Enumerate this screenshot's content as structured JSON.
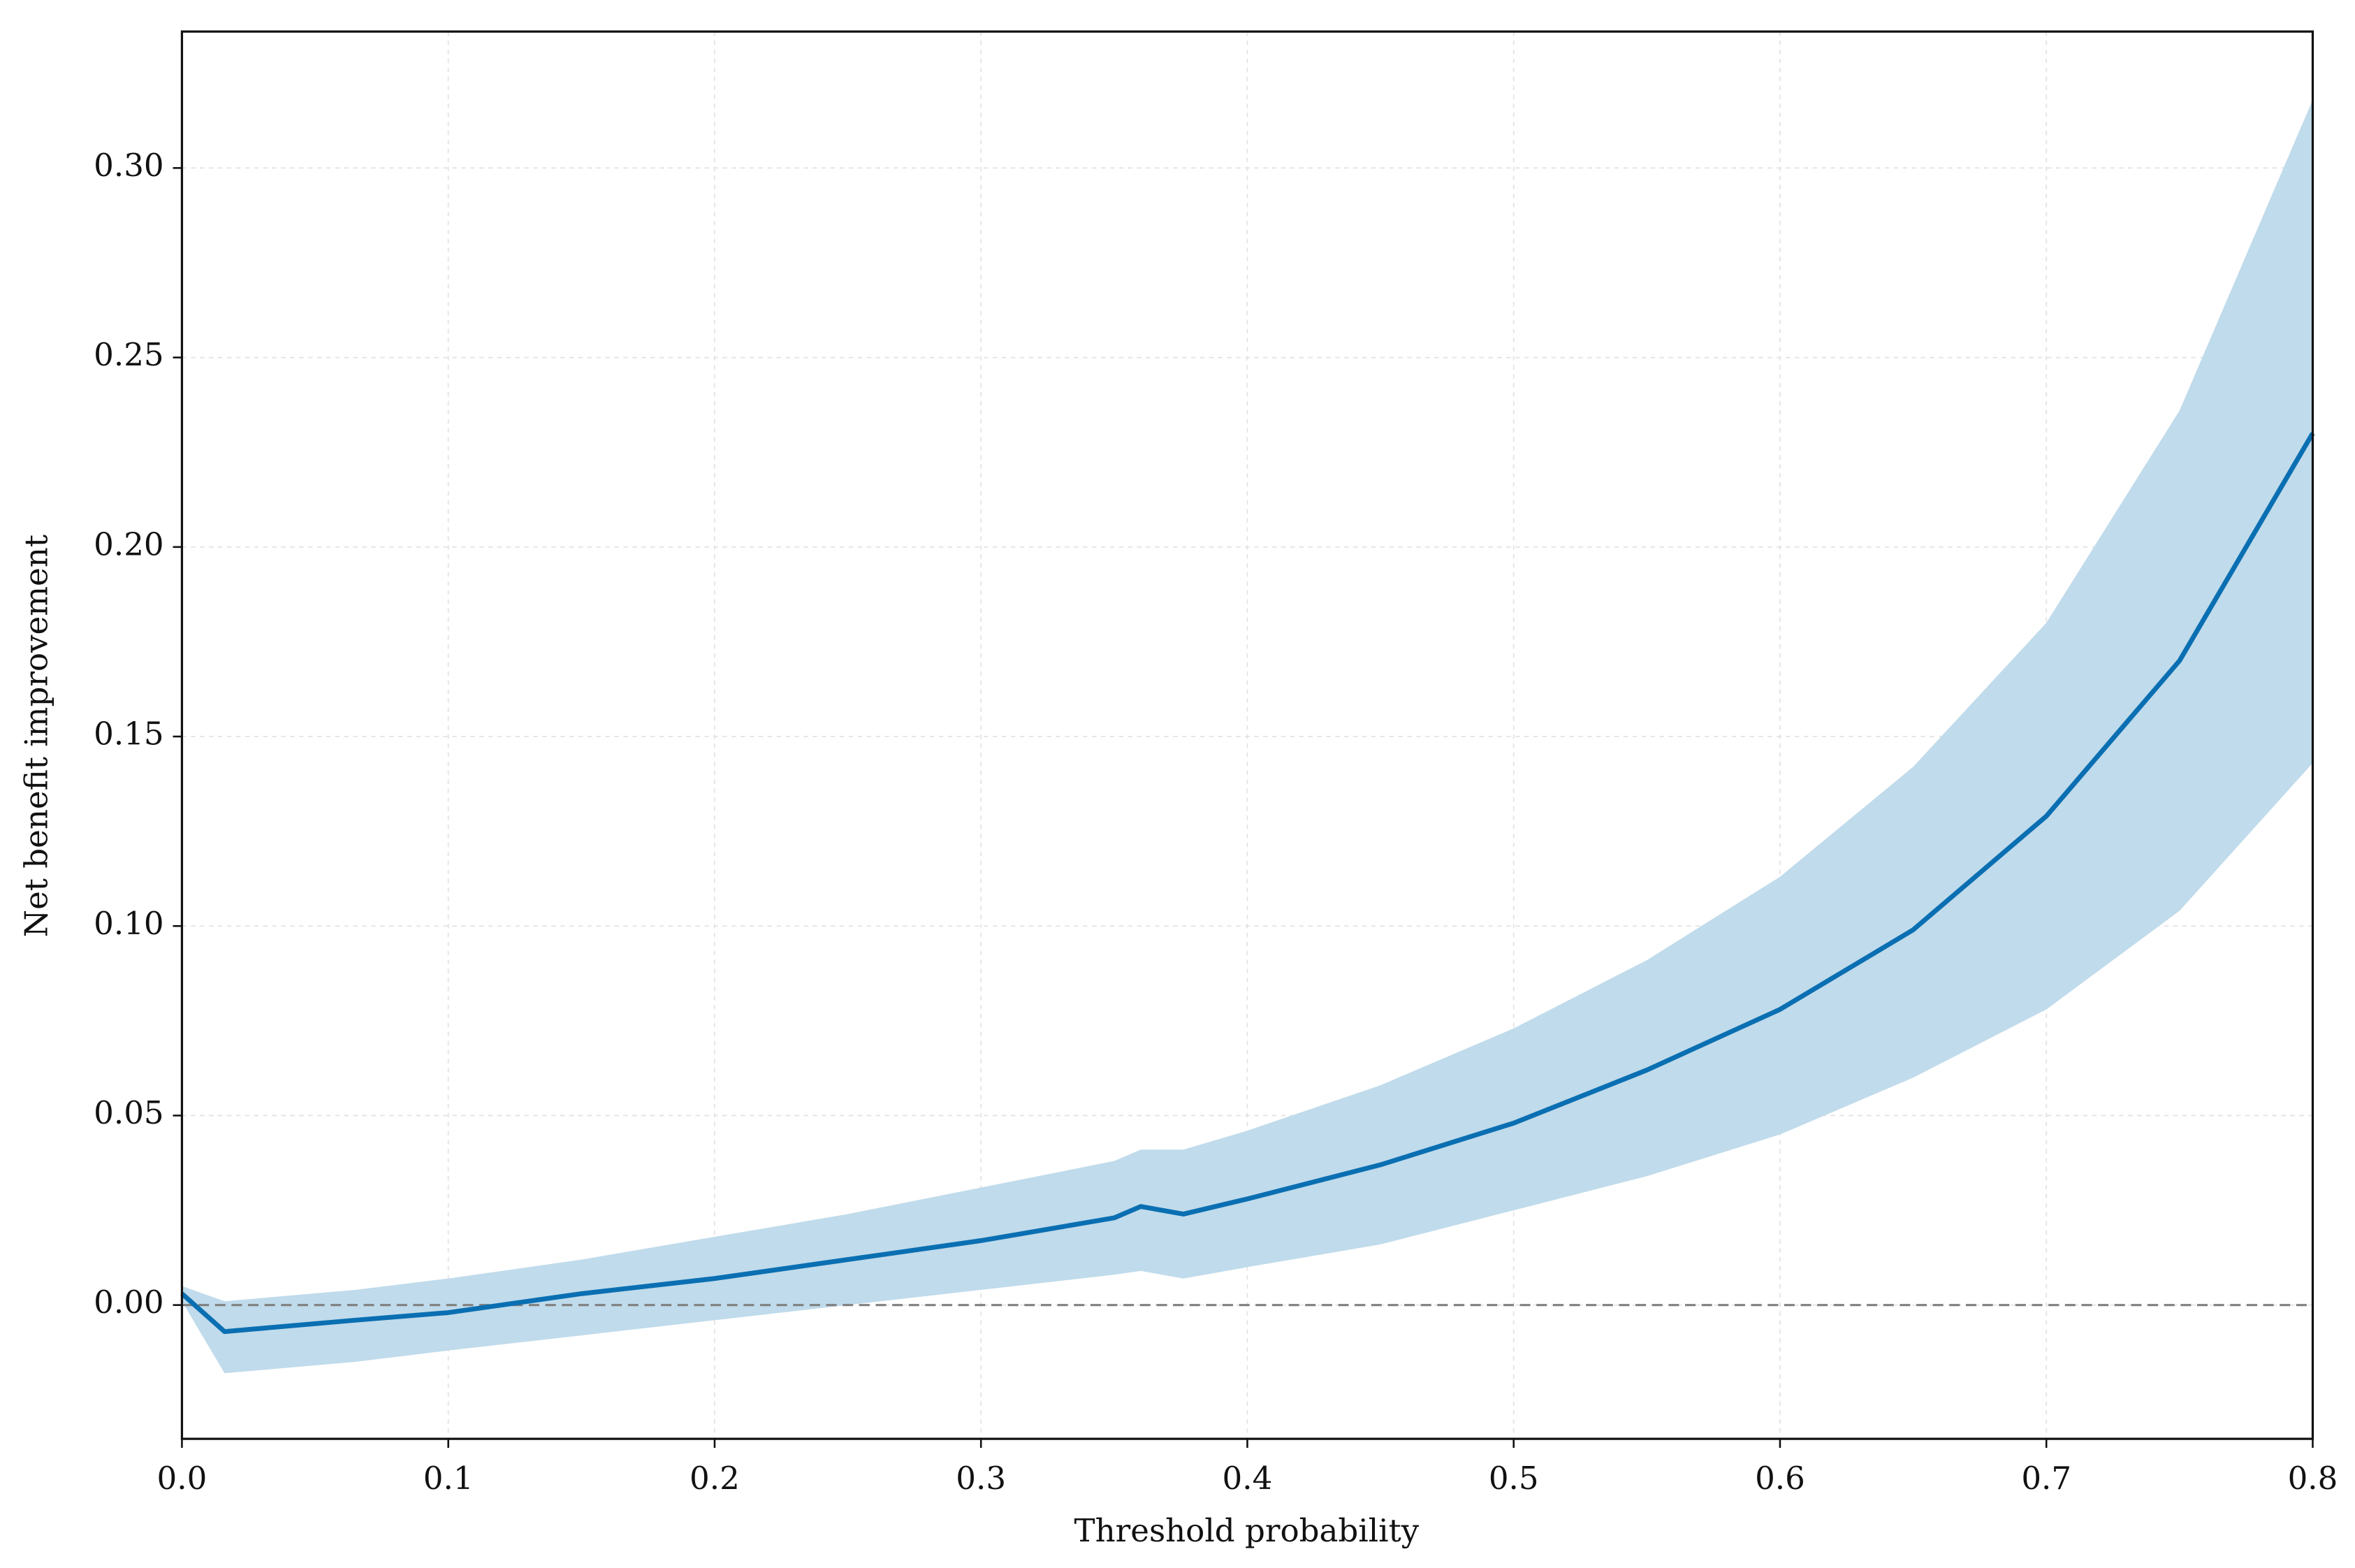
{
  "chart_data": {
    "type": "line",
    "x_label": "Threshold probability",
    "y_label": "Net benefit improvement",
    "x": [
      0,
      0.016,
      0.065,
      0.1,
      0.15,
      0.2,
      0.25,
      0.3,
      0.35,
      0.36,
      0.376,
      0.4,
      0.45,
      0.5,
      0.55,
      0.6,
      0.65,
      0.7,
      0.75,
      0.8
    ],
    "series": [
      {
        "color": "#0a6fb2",
        "band_color": "#c0dbeb",
        "values": [
          0.003,
          -0.007,
          -0.004,
          -0.002,
          0.003,
          0.007,
          0.012,
          0.017,
          0.023,
          0.026,
          0.024,
          0.028,
          0.037,
          0.048,
          0.062,
          0.078,
          0.099,
          0.129,
          0.17,
          0.23
        ],
        "upper": [
          0.005,
          0.001,
          0.004,
          0.007,
          0.012,
          0.018,
          0.024,
          0.031,
          0.038,
          0.041,
          0.041,
          0.046,
          0.058,
          0.073,
          0.091,
          0.113,
          0.142,
          0.18,
          0.236,
          0.318
        ],
        "lower": [
          0.001,
          -0.018,
          -0.015,
          -0.012,
          -0.008,
          -0.004,
          0.0,
          0.004,
          0.008,
          0.009,
          0.007,
          0.01,
          0.016,
          0.025,
          0.034,
          0.045,
          0.06,
          0.078,
          0.104,
          0.143
        ]
      }
    ],
    "reference_line": {
      "value": 0,
      "color": "#808080"
    },
    "xlim": [
      0,
      0.8
    ],
    "xticks": [
      {
        "value": 0,
        "label": "0.0"
      },
      0.1,
      0.2,
      0.3,
      0.4,
      0.5,
      0.6,
      0.7,
      0.8
    ],
    "ylim": [
      -0.0353,
      0.336
    ],
    "yticks": [
      {
        "value": 0,
        "label": "0.00"
      },
      {
        "value": 0.05,
        "label": "0.05"
      },
      {
        "value": 0.1,
        "label": "0.10"
      },
      {
        "value": 0.15,
        "label": "0.15"
      },
      {
        "value": 0.2,
        "label": "0.20"
      },
      {
        "value": 0.25,
        "label": "0.25"
      },
      {
        "value": 0.3,
        "label": "0.30"
      }
    ],
    "grid": true
  }
}
